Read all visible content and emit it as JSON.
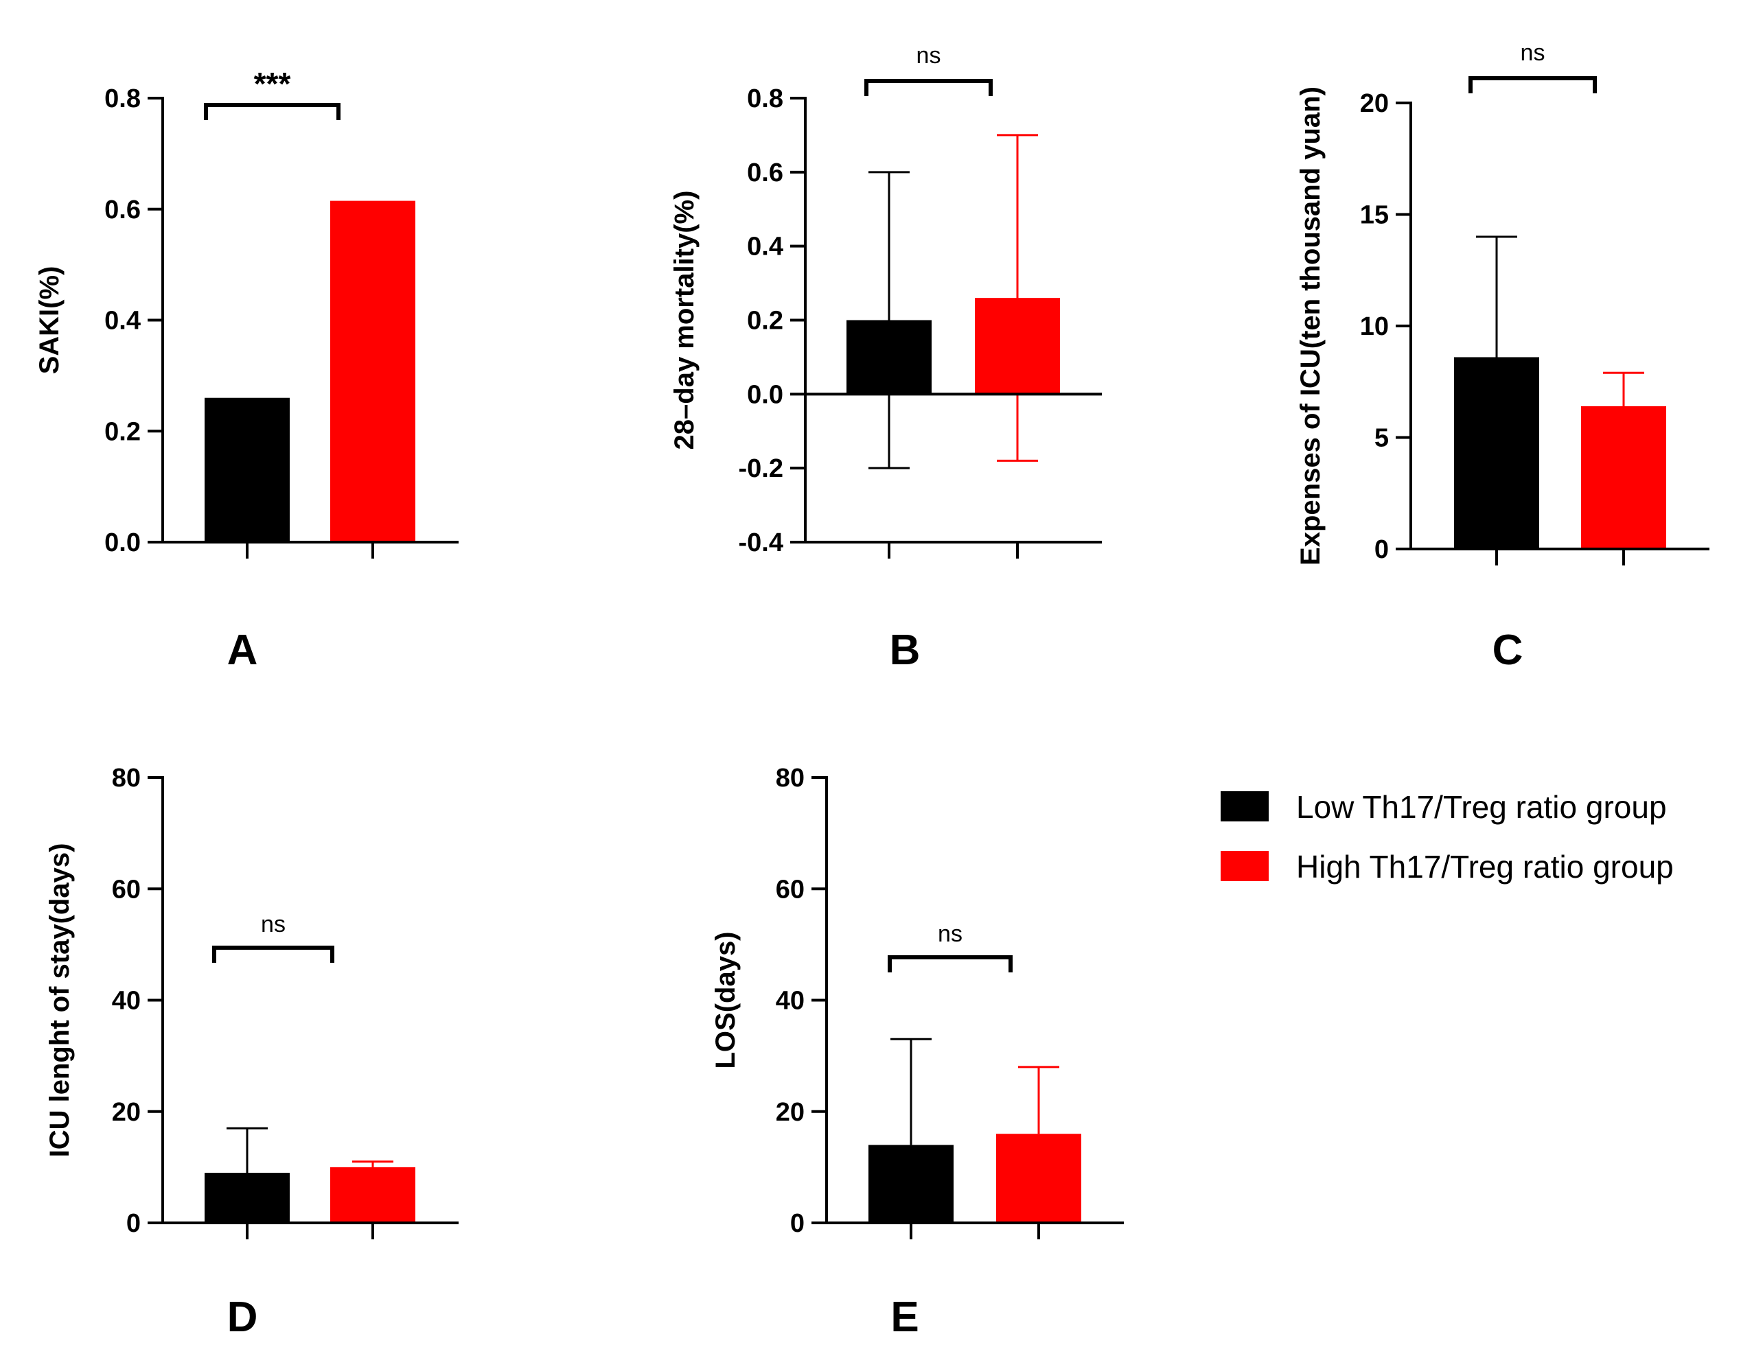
{
  "colors": {
    "low": "#000000",
    "high": "#ff0000",
    "axis": "#000000"
  },
  "legend": [
    {
      "label": "Low Th17/Treg ratio group",
      "color": "#000000"
    },
    {
      "label": "High Th17/Treg ratio group",
      "color": "#ff0000"
    }
  ],
  "chart_data": [
    {
      "panel": "A",
      "type": "bar",
      "categories": [
        "Low Th17/Treg ratio group",
        "High Th17/Treg ratio group"
      ],
      "values": [
        0.26,
        0.615
      ],
      "error_upper": [
        null,
        null
      ],
      "error_lower": [
        null,
        null
      ],
      "ylabel": "SAKI(%)",
      "ylim": [
        0,
        0.8
      ],
      "yticks": [
        0.0,
        0.2,
        0.4,
        0.6,
        0.8
      ],
      "ytick_labels": [
        "0.0",
        "0.2",
        "0.4",
        "0.6",
        "0.8"
      ],
      "significance": "***",
      "legend": "right of panel E"
    },
    {
      "panel": "B",
      "type": "bar",
      "categories": [
        "Low Th17/Treg ratio group",
        "High Th17/Treg ratio group"
      ],
      "values": [
        0.2,
        0.26
      ],
      "error_upper": [
        0.6,
        0.7
      ],
      "error_lower": [
        -0.2,
        -0.18
      ],
      "ylabel": "28–day mortality(%)",
      "ylim": [
        -0.4,
        0.8
      ],
      "yticks": [
        -0.4,
        -0.2,
        0.0,
        0.2,
        0.4,
        0.6,
        0.8
      ],
      "ytick_labels": [
        "-0.4",
        "-0.2",
        "0.0",
        "0.2",
        "0.4",
        "0.6",
        "0.8"
      ],
      "significance": "ns"
    },
    {
      "panel": "C",
      "type": "bar",
      "categories": [
        "Low Th17/Treg ratio group",
        "High Th17/Treg ratio group"
      ],
      "values": [
        8.6,
        6.4
      ],
      "error_upper": [
        14.0,
        7.9
      ],
      "error_lower": [
        null,
        null
      ],
      "ylabel": "Expenses of ICU(ten thousand yuan)",
      "ylim": [
        0,
        20
      ],
      "yticks": [
        0,
        5,
        10,
        15,
        20
      ],
      "ytick_labels": [
        "0",
        "5",
        "10",
        "15",
        "20"
      ],
      "significance": "ns"
    },
    {
      "panel": "D",
      "type": "bar",
      "categories": [
        "Low Th17/Treg ratio group",
        "High Th17/Treg ratio group"
      ],
      "values": [
        9,
        10
      ],
      "error_upper": [
        17,
        11
      ],
      "error_lower": [
        null,
        null
      ],
      "ylabel": "ICU lenght of stay(days)",
      "ylim": [
        0,
        80
      ],
      "yticks": [
        0,
        20,
        40,
        60,
        80
      ],
      "ytick_labels": [
        "0",
        "20",
        "40",
        "60",
        "80"
      ],
      "significance": "ns"
    },
    {
      "panel": "E",
      "type": "bar",
      "categories": [
        "Low Th17/Treg ratio group",
        "High Th17/Treg ratio group"
      ],
      "values": [
        14,
        16
      ],
      "error_upper": [
        33,
        28
      ],
      "error_lower": [
        null,
        null
      ],
      "ylabel": "LOS(days)",
      "ylim": [
        0,
        80
      ],
      "yticks": [
        0,
        20,
        40,
        60,
        80
      ],
      "ytick_labels": [
        "0",
        "20",
        "40",
        "60",
        "80"
      ],
      "significance": "ns"
    }
  ]
}
